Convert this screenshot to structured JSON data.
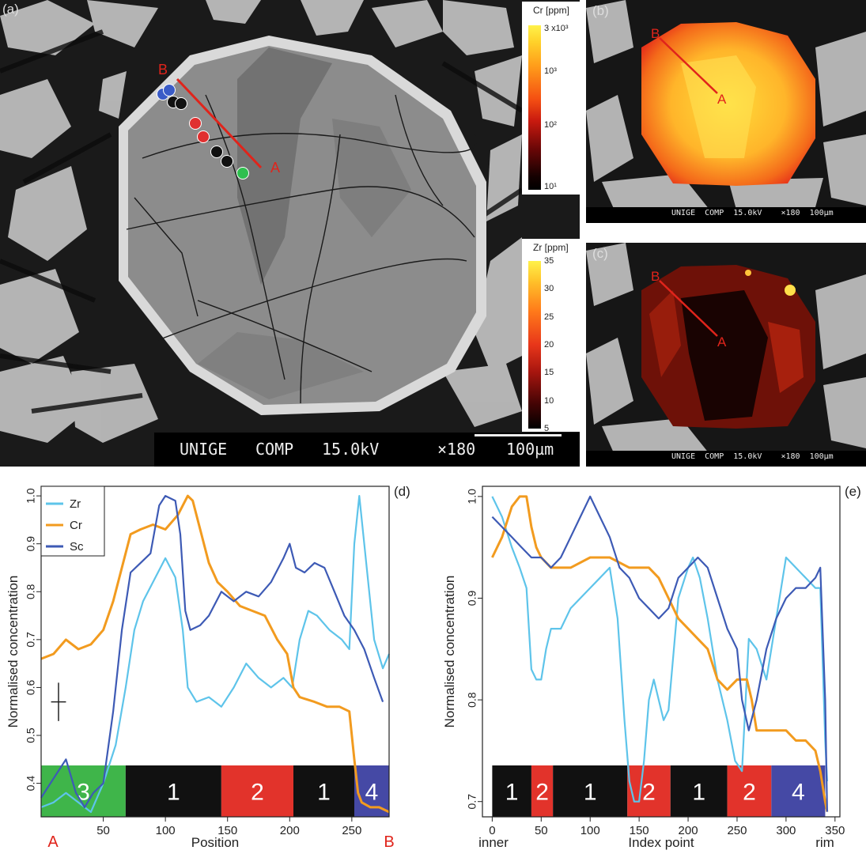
{
  "figure": {
    "panels": {
      "a": {
        "label": "(a)",
        "point_a": "A",
        "point_b": "B",
        "scale_text": {
          "detector": "UNIGE",
          "mode": "COMP",
          "kv": "15.0kV",
          "mag": "×180",
          "scale": "100µm"
        },
        "colorbar_cr": {
          "title": "Cr [ppm]",
          "ticks": [
            "3 x10³",
            "10³",
            "10²",
            "10¹"
          ]
        },
        "colorbar_zr": {
          "title": "Zr [ppm]",
          "ticks": [
            "35",
            "30",
            "25",
            "20",
            "15",
            "10",
            "5"
          ]
        },
        "spot_colors": [
          "#3a5bc7",
          "#3a5bc7",
          "#111111",
          "#111111",
          "#e03030",
          "#e03030",
          "#111111",
          "#111111",
          "#2fbf4f"
        ]
      },
      "b": {
        "label": "(b)",
        "point_a": "A",
        "point_b": "B",
        "bar_text": "UNIGE  COMP  15.0kV    ×180  100µm"
      },
      "c": {
        "label": "(c)",
        "point_a": "A",
        "point_b": "B",
        "bar_text": "UNIGE  COMP  15.0kV    ×180  100µm"
      },
      "d": {
        "label": "(d)",
        "xlabel": "Position",
        "ylabel": "Normalised concentration",
        "end_left": "A",
        "end_right": "B"
      },
      "e": {
        "label": "(e)",
        "xlabel": "Index point",
        "ylabel": "Normalised concentration",
        "end_left": "inner",
        "end_right": "rim"
      }
    }
  },
  "chart_data": [
    {
      "type": "line",
      "panel": "d",
      "xlabel": "Position",
      "ylabel": "Normalised concentration",
      "xlim": [
        0,
        280
      ],
      "ylim": [
        0.33,
        1.02
      ],
      "xticks": [
        50,
        100,
        150,
        200,
        250
      ],
      "yticks": [
        0.4,
        0.5,
        0.6,
        0.7,
        0.8,
        0.9,
        1.0
      ],
      "legend": {
        "placement": "top-left",
        "entries": [
          "Zr",
          "Cr",
          "Sc"
        ]
      },
      "zones": [
        {
          "label": "3",
          "from": 0,
          "to": 68,
          "color": "#3fb54a"
        },
        {
          "label": "1",
          "from": 68,
          "to": 145,
          "color": "#111111"
        },
        {
          "label": "2",
          "from": 145,
          "to": 203,
          "color": "#e2332b"
        },
        {
          "label": "1",
          "from": 203,
          "to": 252,
          "color": "#111111"
        },
        {
          "label": "4",
          "from": 252,
          "to": 280,
          "color": "#4549a5"
        }
      ],
      "error_bar": {
        "x": 14,
        "y": 0.57,
        "dy": 0.04,
        "dx": 6
      },
      "series": [
        {
          "name": "Zr",
          "color": "#5ec4ea",
          "x": [
            0,
            10,
            20,
            30,
            40,
            50,
            60,
            68,
            75,
            82,
            90,
            100,
            108,
            114,
            118,
            125,
            135,
            145,
            155,
            165,
            175,
            185,
            195,
            202,
            208,
            215,
            222,
            232,
            242,
            248,
            252,
            256,
            262,
            268,
            275,
            280
          ],
          "y": [
            0.35,
            0.36,
            0.38,
            0.36,
            0.34,
            0.4,
            0.48,
            0.6,
            0.72,
            0.78,
            0.82,
            0.87,
            0.83,
            0.72,
            0.6,
            0.57,
            0.58,
            0.56,
            0.6,
            0.65,
            0.62,
            0.6,
            0.62,
            0.6,
            0.7,
            0.76,
            0.75,
            0.72,
            0.7,
            0.68,
            0.9,
            1.0,
            0.85,
            0.7,
            0.64,
            0.67
          ]
        },
        {
          "name": "Cr",
          "color": "#f29b1f",
          "x": [
            0,
            10,
            20,
            30,
            40,
            50,
            58,
            65,
            72,
            80,
            90,
            100,
            110,
            118,
            122,
            128,
            135,
            142,
            150,
            160,
            170,
            180,
            190,
            198,
            203,
            208,
            220,
            230,
            240,
            248,
            252,
            255,
            258,
            265,
            272,
            280
          ],
          "y": [
            0.66,
            0.67,
            0.7,
            0.68,
            0.69,
            0.72,
            0.78,
            0.85,
            0.92,
            0.93,
            0.94,
            0.93,
            0.96,
            1.0,
            0.99,
            0.93,
            0.86,
            0.82,
            0.8,
            0.77,
            0.76,
            0.75,
            0.7,
            0.67,
            0.6,
            0.58,
            0.57,
            0.56,
            0.56,
            0.55,
            0.45,
            0.38,
            0.36,
            0.35,
            0.35,
            0.34
          ]
        },
        {
          "name": "Sc",
          "color": "#3d5ab5",
          "x": [
            0,
            10,
            20,
            28,
            35,
            42,
            50,
            58,
            65,
            72,
            80,
            88,
            95,
            100,
            108,
            112,
            116,
            120,
            128,
            135,
            145,
            155,
            165,
            175,
            185,
            195,
            200,
            205,
            212,
            220,
            228,
            236,
            244,
            252,
            260,
            268,
            275
          ],
          "y": [
            0.37,
            0.41,
            0.45,
            0.38,
            0.35,
            0.38,
            0.4,
            0.55,
            0.72,
            0.84,
            0.86,
            0.88,
            0.98,
            1.0,
            0.99,
            0.92,
            0.76,
            0.72,
            0.73,
            0.75,
            0.8,
            0.78,
            0.8,
            0.79,
            0.82,
            0.87,
            0.9,
            0.85,
            0.84,
            0.86,
            0.85,
            0.8,
            0.75,
            0.72,
            0.68,
            0.62,
            0.57
          ]
        }
      ]
    },
    {
      "type": "line",
      "panel": "e",
      "xlabel": "Index point",
      "ylabel": "Normalised concentration",
      "xlim": [
        -10,
        355
      ],
      "ylim": [
        0.685,
        1.01
      ],
      "xticks": [
        0,
        50,
        100,
        150,
        200,
        250,
        300,
        350
      ],
      "yticks": [
        0.7,
        0.8,
        0.9,
        1.0
      ],
      "zones": [
        {
          "label": "1",
          "from": 0,
          "to": 40,
          "color": "#111111"
        },
        {
          "label": "2",
          "from": 40,
          "to": 62,
          "color": "#e2332b"
        },
        {
          "label": "1",
          "from": 62,
          "to": 138,
          "color": "#111111"
        },
        {
          "label": "2",
          "from": 138,
          "to": 182,
          "color": "#e2332b"
        },
        {
          "label": "1",
          "from": 182,
          "to": 240,
          "color": "#111111"
        },
        {
          "label": "2",
          "from": 240,
          "to": 285,
          "color": "#e2332b"
        },
        {
          "label": "4",
          "from": 285,
          "to": 340,
          "color": "#4549a5"
        }
      ],
      "series": [
        {
          "name": "Zr",
          "color": "#5ec4ea",
          "x": [
            0,
            10,
            20,
            28,
            35,
            40,
            45,
            50,
            55,
            60,
            70,
            80,
            90,
            100,
            110,
            120,
            128,
            135,
            140,
            145,
            150,
            155,
            160,
            165,
            170,
            175,
            180,
            190,
            200,
            205,
            212,
            220,
            230,
            240,
            248,
            255,
            262,
            270,
            280,
            290,
            300,
            310,
            320,
            330,
            335,
            340,
            342
          ],
          "y": [
            1.0,
            0.98,
            0.95,
            0.93,
            0.91,
            0.83,
            0.82,
            0.82,
            0.85,
            0.87,
            0.87,
            0.89,
            0.9,
            0.91,
            0.92,
            0.93,
            0.88,
            0.78,
            0.72,
            0.7,
            0.7,
            0.74,
            0.8,
            0.82,
            0.8,
            0.78,
            0.79,
            0.9,
            0.93,
            0.94,
            0.92,
            0.88,
            0.82,
            0.78,
            0.74,
            0.73,
            0.86,
            0.85,
            0.82,
            0.88,
            0.94,
            0.93,
            0.92,
            0.91,
            0.91,
            0.76,
            0.72
          ]
        },
        {
          "name": "Cr",
          "color": "#f29b1f",
          "x": [
            0,
            10,
            20,
            28,
            35,
            40,
            45,
            50,
            60,
            80,
            100,
            120,
            140,
            160,
            170,
            180,
            190,
            200,
            210,
            220,
            230,
            240,
            250,
            260,
            265,
            270,
            280,
            290,
            300,
            310,
            320,
            330,
            335,
            340,
            342
          ],
          "y": [
            0.94,
            0.96,
            0.99,
            1.0,
            1.0,
            0.97,
            0.95,
            0.94,
            0.93,
            0.93,
            0.94,
            0.94,
            0.93,
            0.93,
            0.92,
            0.9,
            0.88,
            0.87,
            0.86,
            0.85,
            0.82,
            0.81,
            0.82,
            0.82,
            0.8,
            0.77,
            0.77,
            0.77,
            0.77,
            0.76,
            0.76,
            0.75,
            0.73,
            0.7,
            0.69
          ]
        },
        {
          "name": "Sc",
          "color": "#3d5ab5",
          "x": [
            0,
            10,
            20,
            30,
            40,
            50,
            60,
            70,
            80,
            90,
            100,
            110,
            120,
            130,
            140,
            150,
            160,
            170,
            180,
            190,
            200,
            210,
            220,
            230,
            240,
            250,
            255,
            262,
            270,
            280,
            290,
            300,
            310,
            320,
            330,
            335,
            340,
            342
          ],
          "y": [
            0.98,
            0.97,
            0.96,
            0.95,
            0.94,
            0.94,
            0.93,
            0.94,
            0.96,
            0.98,
            1.0,
            0.98,
            0.96,
            0.93,
            0.92,
            0.9,
            0.89,
            0.88,
            0.89,
            0.92,
            0.93,
            0.94,
            0.93,
            0.9,
            0.87,
            0.85,
            0.8,
            0.77,
            0.8,
            0.85,
            0.88,
            0.9,
            0.91,
            0.91,
            0.92,
            0.93,
            0.8,
            0.69
          ]
        }
      ]
    }
  ]
}
